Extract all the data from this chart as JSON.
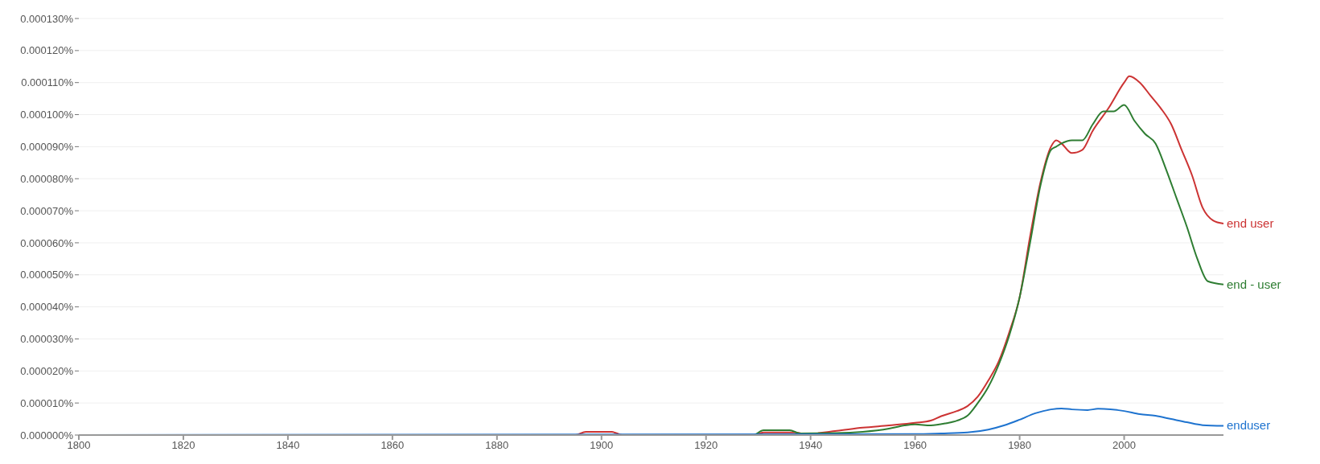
{
  "chart_data": {
    "type": "line",
    "xlim": [
      1800,
      2019
    ],
    "xticks": [
      1800,
      1820,
      1840,
      1860,
      1880,
      1900,
      1920,
      1940,
      1960,
      1980,
      2000
    ],
    "ylim": [
      0,
      0.00013
    ],
    "yticks": [
      {
        "value": 0,
        "label": "0.000000%"
      },
      {
        "value": 1e-05,
        "label": "0.000010%"
      },
      {
        "value": 2e-05,
        "label": "0.000020%"
      },
      {
        "value": 3e-05,
        "label": "0.000030%"
      },
      {
        "value": 4e-05,
        "label": "0.000040%"
      },
      {
        "value": 5e-05,
        "label": "0.000050%"
      },
      {
        "value": 6e-05,
        "label": "0.000060%"
      },
      {
        "value": 7e-05,
        "label": "0.000070%"
      },
      {
        "value": 8e-05,
        "label": "0.000080%"
      },
      {
        "value": 9e-05,
        "label": "0.000090%"
      },
      {
        "value": 0.0001,
        "label": "0.000100%"
      },
      {
        "value": 0.00011,
        "label": "0.000110%"
      },
      {
        "value": 0.00012,
        "label": "0.000120%"
      },
      {
        "value": 0.00013,
        "label": "0.000130%"
      }
    ],
    "grid": "y",
    "marker": "none",
    "line_style": "solid",
    "series": [
      {
        "name": "end user",
        "color": "#cc3333",
        "x": [
          1800,
          1895,
          1897,
          1902,
          1904,
          1929,
          1931,
          1937,
          1939,
          1945,
          1950,
          1955,
          1960,
          1963,
          1965,
          1968,
          1970,
          1972,
          1974,
          1976,
          1978,
          1980,
          1982,
          1984,
          1986,
          1987,
          1988,
          1990,
          1992,
          1994,
          1997,
          2000,
          2001,
          2003,
          2005,
          2007,
          2009,
          2011,
          2013,
          2015,
          2017,
          2019
        ],
        "values": [
          0,
          0,
          1e-06,
          1e-06,
          0,
          0,
          8e-07,
          8e-07,
          3e-07,
          1.3e-06,
          2.3e-06,
          3e-06,
          3.8e-06,
          4.5e-06,
          5.9e-06,
          7.5e-06,
          9e-06,
          1.2e-05,
          1.7e-05,
          2.3e-05,
          3.2e-05,
          4.3e-05,
          6.2e-05,
          7.9e-05,
          9e-05,
          9.2e-05,
          9.1e-05,
          8.8e-05,
          8.9e-05,
          9.5e-05,
          0.000102,
          0.00011,
          0.000112,
          0.00011,
          0.000106,
          0.000102,
          9.7e-05,
          8.9e-05,
          8.1e-05,
          7.1e-05,
          6.7e-05,
          6.6e-05
        ]
      },
      {
        "name": "end - user",
        "color": "#2e7d32",
        "x": [
          1800,
          1929,
          1931,
          1936,
          1938,
          1945,
          1950,
          1955,
          1958,
          1960,
          1963,
          1966,
          1968,
          1970,
          1972,
          1974,
          1976,
          1978,
          1980,
          1982,
          1984,
          1986,
          1987,
          1988,
          1990,
          1992,
          1994,
          1996,
          1998,
          2000,
          2002,
          2004,
          2006,
          2008,
          2010,
          2012,
          2014,
          2016,
          2019
        ],
        "values": [
          0,
          0,
          1.5e-06,
          1.5e-06,
          5e-07,
          6e-07,
          1e-06,
          2e-06,
          3e-06,
          3.3e-06,
          3e-06,
          3.7e-06,
          4.5e-06,
          6e-06,
          1e-05,
          1.5e-05,
          2.2e-05,
          3.1e-05,
          4.3e-05,
          6e-05,
          7.8e-05,
          8.9e-05,
          9e-05,
          9.1e-05,
          9.2e-05,
          9.2e-05,
          9.7e-05,
          0.000101,
          0.000101,
          0.000103,
          9.8e-05,
          9.4e-05,
          9.1e-05,
          8.3e-05,
          7.4e-05,
          6.5e-05,
          5.5e-05,
          4.8e-05,
          4.7e-05
        ]
      },
      {
        "name": "enduser",
        "color": "#1e73cf",
        "x": [
          1800,
          1960,
          1965,
          1970,
          1974,
          1977,
          1980,
          1983,
          1986,
          1988,
          1990,
          1993,
          1995,
          2000,
          2003,
          2006,
          2009,
          2012,
          2015,
          2019
        ],
        "values": [
          0,
          3e-07,
          5e-07,
          8e-07,
          1.7e-06,
          3e-06,
          4.8e-06,
          6.8e-06,
          8e-06,
          8.3e-06,
          8e-06,
          7.8e-06,
          8.2e-06,
          7.5e-06,
          6.5e-06,
          6e-06,
          5e-06,
          4e-06,
          3.1e-06,
          2.9e-06
        ]
      }
    ]
  }
}
